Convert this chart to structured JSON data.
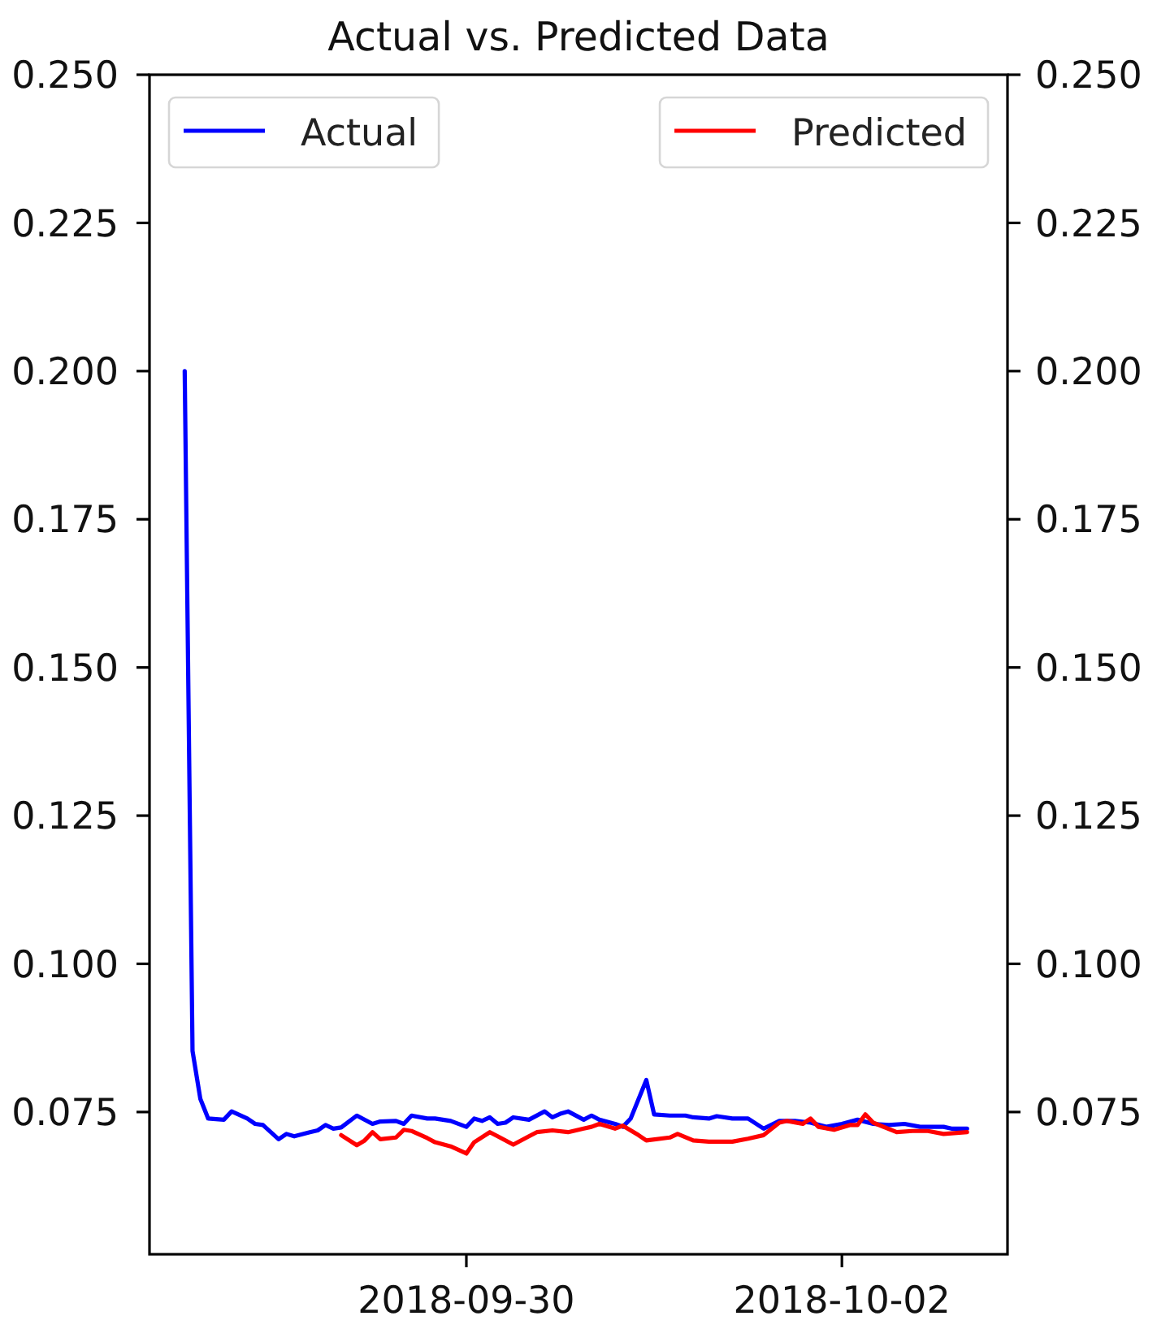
{
  "chart_data": {
    "type": "line",
    "title": "Actual vs. Predicted Data",
    "series": [
      {
        "name": "Actual",
        "color": "#0000ff",
        "x": [
          "2018-09-28T12:00",
          "2018-09-28T13:00",
          "2018-09-28T14:00",
          "2018-09-28T15:00",
          "2018-09-28T17:00",
          "2018-09-28T18:00",
          "2018-09-28T20:00",
          "2018-09-28T21:00",
          "2018-09-28T22:00",
          "2018-09-29T00:00",
          "2018-09-29T01:00",
          "2018-09-29T02:00",
          "2018-09-29T04:00",
          "2018-09-29T05:00",
          "2018-09-29T06:00",
          "2018-09-29T07:00",
          "2018-09-29T08:00",
          "2018-09-29T10:00",
          "2018-09-29T12:00",
          "2018-09-29T13:00",
          "2018-09-29T15:00",
          "2018-09-29T16:00",
          "2018-09-29T17:00",
          "2018-09-29T19:00",
          "2018-09-29T20:00",
          "2018-09-29T22:00",
          "2018-09-30T00:00",
          "2018-09-30T01:00",
          "2018-09-30T02:00",
          "2018-09-30T03:00",
          "2018-09-30T04:00",
          "2018-09-30T05:00",
          "2018-09-30T06:00",
          "2018-09-30T08:00",
          "2018-09-30T10:00",
          "2018-09-30T11:00",
          "2018-09-30T12:00",
          "2018-09-30T13:00",
          "2018-09-30T15:00",
          "2018-09-30T16:00",
          "2018-09-30T17:00",
          "2018-09-30T19:00",
          "2018-09-30T20:00",
          "2018-09-30T21:00",
          "2018-09-30T23:00",
          "2018-10-01T00:00",
          "2018-10-01T02:00",
          "2018-10-01T04:00",
          "2018-10-01T05:00",
          "2018-10-01T07:00",
          "2018-10-01T08:00",
          "2018-10-01T10:00",
          "2018-10-01T12:00",
          "2018-10-01T14:00",
          "2018-10-01T16:00",
          "2018-10-01T18:00",
          "2018-10-01T20:00",
          "2018-10-01T22:00",
          "2018-10-02T00:00",
          "2018-10-02T02:00",
          "2018-10-02T04:00",
          "2018-10-02T06:00",
          "2018-10-02T08:00",
          "2018-10-02T10:00",
          "2018-10-02T13:00",
          "2018-10-02T14:00",
          "2018-10-02T16:00"
        ],
        "values": [
          0.2,
          0.0853,
          0.0772,
          0.0739,
          0.0737,
          0.0751,
          0.0739,
          0.073,
          0.0728,
          0.0704,
          0.0713,
          0.0709,
          0.0716,
          0.0719,
          0.0728,
          0.0722,
          0.0724,
          0.0744,
          0.073,
          0.0734,
          0.0735,
          0.073,
          0.0744,
          0.0739,
          0.0739,
          0.0735,
          0.0725,
          0.0739,
          0.0735,
          0.0741,
          0.073,
          0.0732,
          0.0741,
          0.0737,
          0.0751,
          0.0741,
          0.0747,
          0.0751,
          0.0737,
          0.0744,
          0.0737,
          0.073,
          0.0725,
          0.0739,
          0.0804,
          0.0746,
          0.0744,
          0.0744,
          0.0741,
          0.0739,
          0.0743,
          0.0739,
          0.0739,
          0.0722,
          0.0735,
          0.0735,
          0.0732,
          0.0725,
          0.073,
          0.0737,
          0.073,
          0.0728,
          0.073,
          0.0725,
          0.0725,
          0.0722,
          0.0722
        ]
      },
      {
        "name": "Predicted",
        "color": "#ff0000",
        "axis": "y2",
        "x": [
          "2018-09-29T08:00",
          "2018-09-29T10:00",
          "2018-09-29T11:00",
          "2018-09-29T12:00",
          "2018-09-29T13:00",
          "2018-09-29T15:00",
          "2018-09-29T16:00",
          "2018-09-29T17:00",
          "2018-09-29T19:00",
          "2018-09-29T20:00",
          "2018-09-29T22:00",
          "2018-09-30T00:00",
          "2018-09-30T01:00",
          "2018-09-30T03:00",
          "2018-09-30T04:00",
          "2018-09-30T06:00",
          "2018-09-30T08:00",
          "2018-09-30T09:00",
          "2018-09-30T11:00",
          "2018-09-30T13:00",
          "2018-09-30T15:00",
          "2018-09-30T16:00",
          "2018-09-30T17:00",
          "2018-09-30T19:00",
          "2018-09-30T20:00",
          "2018-09-30T22:00",
          "2018-09-30T23:00",
          "2018-10-01T02:00",
          "2018-10-01T03:00",
          "2018-10-01T05:00",
          "2018-10-01T07:00",
          "2018-10-01T10:00",
          "2018-10-01T12:00",
          "2018-10-01T14:00",
          "2018-10-01T16:00",
          "2018-10-01T17:00",
          "2018-10-01T19:00",
          "2018-10-01T20:00",
          "2018-10-01T21:00",
          "2018-10-01T23:00",
          "2018-10-02T01:00",
          "2018-10-02T02:00",
          "2018-10-02T03:00",
          "2018-10-02T04:00",
          "2018-10-02T07:00",
          "2018-10-02T09:00",
          "2018-10-02T11:00",
          "2018-10-02T13:00",
          "2018-10-02T16:00"
        ],
        "values": [
          0.0711,
          0.0694,
          0.0702,
          0.0716,
          0.0704,
          0.0707,
          0.072,
          0.0718,
          0.0706,
          0.0699,
          0.0692,
          0.068,
          0.0699,
          0.0716,
          0.0709,
          0.0695,
          0.0709,
          0.0716,
          0.0719,
          0.0716,
          0.0722,
          0.0725,
          0.073,
          0.0722,
          0.0727,
          0.0711,
          0.0702,
          0.0707,
          0.0713,
          0.0702,
          0.07,
          0.07,
          0.0705,
          0.0711,
          0.0732,
          0.0735,
          0.073,
          0.0739,
          0.0725,
          0.072,
          0.0728,
          0.0728,
          0.0746,
          0.0732,
          0.0716,
          0.0718,
          0.0718,
          0.0713,
          0.0716
        ]
      }
    ],
    "xlim": [
      "2018-09-28T07:30",
      "2018-10-02T21:10"
    ],
    "xticks": [
      "2018-09-30",
      "2018-10-02"
    ],
    "ylim": [
      0.051,
      0.25
    ],
    "yticks": [
      {
        "value": 0.075,
        "label": "0.075"
      },
      {
        "value": 0.1,
        "label": "0.100"
      },
      {
        "value": 0.125,
        "label": "0.125"
      },
      {
        "value": 0.15,
        "label": "0.150"
      },
      {
        "value": 0.175,
        "label": "0.175"
      },
      {
        "value": 0.2,
        "label": "0.200"
      },
      {
        "value": 0.225,
        "label": "0.225"
      },
      {
        "value": 0.25,
        "label": "0.250"
      }
    ],
    "y2lim": [
      0.051,
      0.25
    ],
    "y2ticks": [
      {
        "value": 0.075,
        "label": "0.075"
      },
      {
        "value": 0.1,
        "label": "0.100"
      },
      {
        "value": 0.125,
        "label": "0.125"
      },
      {
        "value": 0.15,
        "label": "0.150"
      },
      {
        "value": 0.175,
        "label": "0.175"
      },
      {
        "value": 0.2,
        "label": "0.200"
      },
      {
        "value": 0.225,
        "label": "0.225"
      },
      {
        "value": 0.25,
        "label": "0.250"
      }
    ],
    "legend": "top"
  }
}
